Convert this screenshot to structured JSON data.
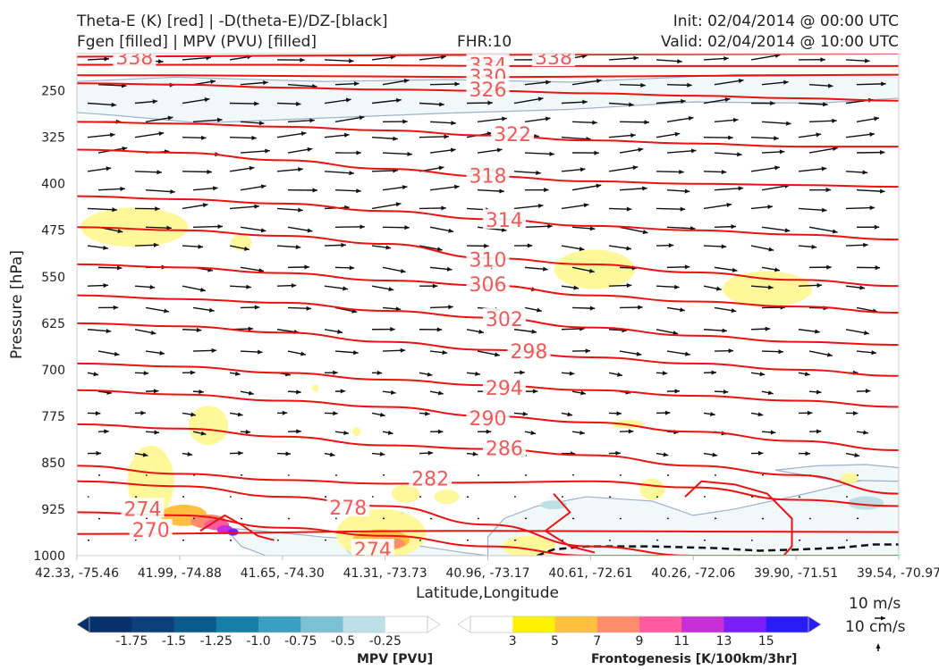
{
  "header": {
    "title_line1": "Theta-E (K) [red] | -D(theta-E)/DZ-[black]",
    "title_line2": "Fgen [filled] | MPV (PVU) [filled]",
    "fhr": "FHR:10",
    "init": "Init: 02/04/2014 @ 00:00 UTC",
    "valid": "Valid: 02/04/2014 @ 10:00 UTC"
  },
  "chart_data": {
    "type": "cross-section",
    "xlabel": "Latitude,Longitude",
    "ylabel": "Pressure [hPa]",
    "x_ticks": [
      "42.33, -75.46",
      "41.99, -74.88",
      "41.65, -74.30",
      "41.31, -73.73",
      "40.96, -73.17",
      "40.61, -72.61",
      "40.26, -72.06",
      "39.90, -71.51",
      "39.54, -70.97"
    ],
    "y_ticks": [
      250,
      325,
      400,
      475,
      550,
      625,
      700,
      775,
      850,
      925,
      1000
    ],
    "ylim": [
      1000,
      190
    ],
    "theta_e_color": "#ee1111",
    "theta_e_label_color": "#f05a5a",
    "theta_e_contours": [
      {
        "level": 338,
        "pressure": [
          195,
          192,
          190
        ]
      },
      {
        "level": 334,
        "pressure": [
          208,
          208,
          208,
          209,
          210,
          210,
          210,
          210,
          210
        ]
      },
      {
        "level": 330,
        "pressure": [
          225,
          225,
          226,
          227,
          228,
          227,
          226,
          225,
          224
        ]
      },
      {
        "level": 326,
        "pressure": [
          238,
          240,
          245,
          248,
          250,
          254,
          258,
          262,
          266
        ]
      },
      {
        "level": 322,
        "pressure": [
          300,
          303,
          308,
          314,
          322,
          330,
          335,
          340,
          340
        ]
      },
      {
        "level": 318,
        "pressure": [
          345,
          350,
          362,
          376,
          388,
          396,
          400,
          402,
          405
        ]
      },
      {
        "level": 314,
        "pressure": [
          420,
          425,
          432,
          444,
          457,
          468,
          475,
          482,
          490
        ]
      },
      {
        "level": 310,
        "pressure": [
          470,
          475,
          484,
          497,
          520,
          530,
          543,
          555,
          565
        ]
      },
      {
        "level": 306,
        "pressure": [
          530,
          535,
          544,
          556,
          564,
          580,
          590,
          598,
          608
        ]
      },
      {
        "level": 302,
        "pressure": [
          580,
          586,
          592,
          605,
          616,
          632,
          645,
          655,
          660
        ]
      },
      {
        "level": 298,
        "pressure": [
          625,
          630,
          640,
          655,
          668,
          680,
          690,
          700,
          710
        ]
      },
      {
        "level": 294,
        "pressure": [
          690,
          695,
          705,
          716,
          725,
          733,
          742,
          750,
          760
        ]
      },
      {
        "level": 290,
        "pressure": [
          733,
          740,
          750,
          760,
          775,
          785,
          800,
          815,
          830
        ]
      },
      {
        "level": 286,
        "pressure": [
          788,
          795,
          808,
          822,
          828,
          838,
          855,
          870,
          900
        ]
      },
      {
        "level": 282,
        "pressure": [
          855,
          868,
          878,
          884,
          882,
          880,
          890,
          910,
          920
        ]
      },
      {
        "level": 278,
        "pressure": [
          880,
          888,
          905,
          920,
          950,
          985,
          1000,
          1000,
          1000
        ]
      },
      {
        "level": 274,
        "pressure": [
          930,
          935,
          955,
          968,
          985,
          1000,
          1000,
          1000,
          1000
        ]
      },
      {
        "level": 270,
        "pressure": [
          965,
          960,
          962
        ]
      }
    ],
    "theta_e_labels": [
      "338",
      "334",
      "330",
      "326",
      "322",
      "318",
      "314",
      "310",
      "306",
      "302",
      "298",
      "294",
      "290",
      "286",
      "282",
      "278",
      "274",
      "274",
      "270",
      "338"
    ],
    "colorbars": [
      {
        "name": "MPV [PVU]",
        "colors": [
          "#08306b",
          "#0d3f7a",
          "#0a5a8e",
          "#157fa7",
          "#3a9fc0",
          "#7bc0d3",
          "#bde0e6",
          "#ffffff"
        ],
        "tick_labels": [
          "-1.75",
          "-1.5",
          "-1.25",
          "-1.0",
          "-0.75",
          "-0.5",
          "-0.25"
        ]
      },
      {
        "name": "Frontogenesis [K/100km/3hr]",
        "colors": [
          "#ffffff",
          "#fff200",
          "#ffbf3f",
          "#ff8c6a",
          "#ff5aa0",
          "#c62fd6",
          "#7a1ff5",
          "#2a1cf2"
        ],
        "tick_labels": [
          "3",
          "5",
          "7",
          "9",
          "11",
          "13",
          "15"
        ]
      }
    ],
    "reference_vectors": [
      "10 m/s",
      "10 cm/s"
    ]
  }
}
